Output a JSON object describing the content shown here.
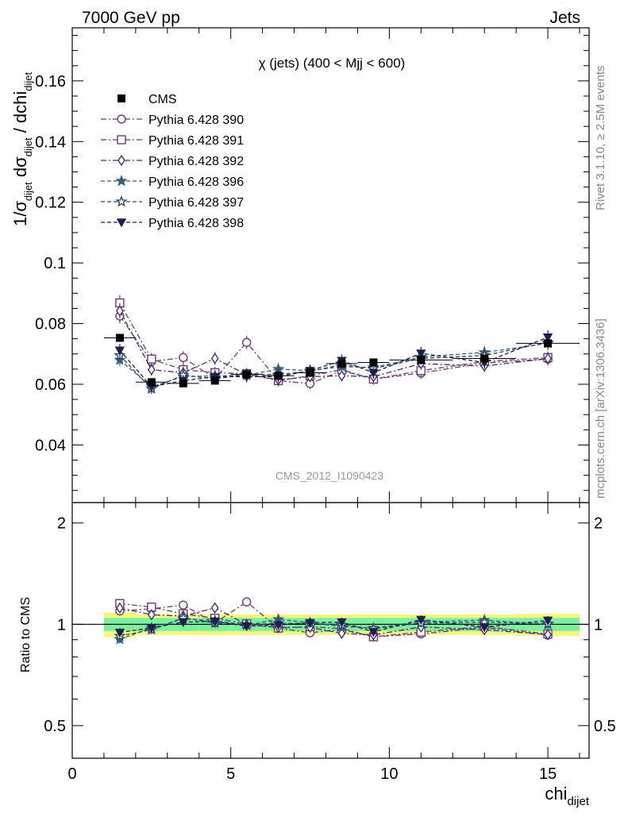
{
  "header": {
    "left": "7000 GeV pp",
    "right": "Jets",
    "side_top": "Rivet 3.1.10, ≥ 2.5M events",
    "side_bottom": "mcplots.cern.ch [arXiv:1306.3436]"
  },
  "chart_data": {
    "type": "line",
    "title": "χ (jets) (400 < Mjj <  600)",
    "watermark": "CMS_2012_I1090423",
    "xlabel": "chi",
    "xlabel_sub": "dijet",
    "ylabel": {
      "a": "1/σ",
      "a_sub": "dijet",
      "b": " dσ",
      "b_sub": "dijet",
      "c": " / dchi",
      "c_sub": "dijet"
    },
    "ratio_ylabel": "Ratio to CMS",
    "xlim": [
      0,
      16.3
    ],
    "ylim": [
      0.021,
      0.1775
    ],
    "ratio_ylim": [
      0.4,
      2.3
    ],
    "ratio_log": true,
    "xticks": [
      0,
      5,
      10,
      15
    ],
    "yticks": [
      0.04,
      0.06,
      0.08,
      0.1,
      0.12,
      0.14,
      0.16
    ],
    "ytick_labels": [
      "0.04",
      "0.06",
      "0.08",
      "0.1",
      "0.12",
      "0.14",
      "0.16"
    ],
    "ratio_yticks": [
      0.5,
      1,
      2
    ],
    "ratio_ytick_labels": [
      "0.5",
      "1",
      "2"
    ],
    "legend_position": "top-left",
    "x": [
      1.5,
      2.5,
      3.5,
      4.5,
      5.5,
      6.5,
      7.5,
      8.5,
      9.5,
      11,
      13,
      15
    ],
    "data": {
      "name": "CMS",
      "values": [
        0.0753,
        0.0607,
        0.0603,
        0.0612,
        0.0633,
        0.0628,
        0.0638,
        0.0668,
        0.0672,
        0.068,
        0.0685,
        0.0735
      ],
      "xerr": [
        0.5,
        0.5,
        0.5,
        0.5,
        0.5,
        0.5,
        0.5,
        0.5,
        0.5,
        1,
        1,
        1
      ],
      "band_inner": [
        0.045,
        0.045,
        0.045,
        0.045,
        0.045,
        0.045,
        0.045,
        0.045,
        0.045,
        0.045,
        0.045,
        0.045
      ],
      "band_outer": [
        0.085,
        0.07,
        0.07,
        0.07,
        0.07,
        0.07,
        0.07,
        0.07,
        0.07,
        0.07,
        0.07,
        0.075
      ]
    },
    "series": [
      {
        "name": "Pythia 6.428 390",
        "color": "#6b3c6f",
        "marker": "circle-open",
        "dash": "7,3,2,3",
        "values": [
          0.0825,
          0.0675,
          0.0688,
          0.0618,
          0.0738,
          0.0612,
          0.0602,
          0.0645,
          0.0617,
          0.0637,
          0.067,
          0.0683
        ]
      },
      {
        "name": "Pythia 6.428 391",
        "color": "#6b3c6f",
        "marker": "square-open",
        "dash": "7,3,2,3",
        "values": [
          0.0868,
          0.0683,
          0.0648,
          0.0638,
          0.0635,
          0.0612,
          0.0628,
          0.0648,
          0.0617,
          0.0645,
          0.0675,
          0.0688
        ]
      },
      {
        "name": "Pythia 6.428 392",
        "color": "#4a2b6e",
        "marker": "diamond-open",
        "dash": "7,3,2,3",
        "values": [
          0.0842,
          0.0648,
          0.0638,
          0.0685,
          0.0632,
          0.0615,
          0.0625,
          0.0628,
          0.0625,
          0.0668,
          0.066,
          0.0685
        ]
      },
      {
        "name": "Pythia 6.428 396",
        "color": "#3b5e7a",
        "marker": "star-filled",
        "dash": "5,3",
        "values": [
          0.068,
          0.0592,
          0.0625,
          0.0628,
          0.063,
          0.065,
          0.0645,
          0.0658,
          0.0655,
          0.069,
          0.0705,
          0.0735
        ]
      },
      {
        "name": "Pythia 6.428 397",
        "color": "#2c4a66",
        "marker": "star-open",
        "dash": "5,3",
        "values": [
          0.0695,
          0.0585,
          0.063,
          0.0618,
          0.0632,
          0.0632,
          0.0642,
          0.0665,
          0.0652,
          0.0685,
          0.0695,
          0.0738
        ]
      },
      {
        "name": "Pythia 6.428 398",
        "color": "#1d1f4d",
        "marker": "triangle-down-filled",
        "dash": "5,3",
        "values": [
          0.0712,
          0.0592,
          0.0612,
          0.0625,
          0.0625,
          0.0625,
          0.0645,
          0.0678,
          0.0638,
          0.0702,
          0.0672,
          0.0755
        ]
      }
    ]
  }
}
